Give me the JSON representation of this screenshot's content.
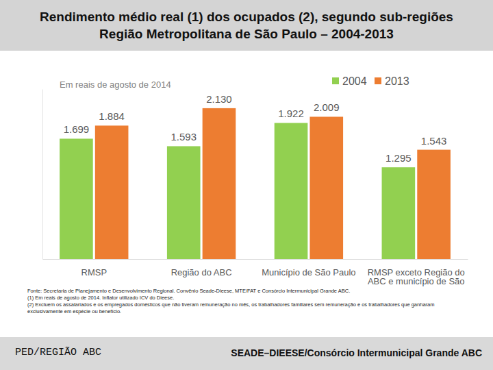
{
  "chart_data": {
    "type": "bar",
    "title": [
      "Rendimento médio real (1) dos ocupados (2), segundo sub-regiões",
      "Região Metropolitana de São Paulo – 2004-2013"
    ],
    "subtitle": "Em reais de agosto de 2014",
    "categories": [
      "RMSP",
      "Região do ABC",
      "Município de São Paulo",
      "RMSP exceto Região do ABC e município de São Paulo"
    ],
    "series": [
      {
        "name": "2004",
        "color": "#92d050",
        "values": [
          1699,
          1593,
          1922,
          1295
        ],
        "value_labels": [
          "1.699",
          "1.593",
          "1.922",
          "1.295"
        ]
      },
      {
        "name": "2013",
        "color": "#ed7d31",
        "values": [
          1884,
          2130,
          2009,
          1543
        ],
        "value_labels": [
          "1.884",
          "2.130",
          "2.009",
          "1.543"
        ]
      }
    ],
    "ylim": [
      0,
      2400
    ],
    "tick_labels": "x",
    "legend": "top-right",
    "data_labels": true,
    "notes": [
      "Fonte: Secretaria de Planejamento e Desenvolvimento Regional. Convênio Seade-Dieese, MTE/FAT e Consórcio Intermunicipal Grande ABC.",
      "(1) Em reais de agosto de 2014. Inflator utilizado ICV do Dieese.",
      "(2) Excluem os assalariados e os empregados domésticos que não tiveram remuneração no mês, os trabalhadores familiares sem remuneração e os trabalhadores que ganharam exclusivamente em espécie ou benefício."
    ],
    "footer": {
      "left": "PED/REGIÃO ABC",
      "right": "SEADE–DIEESE/Consórcio Intermunicipal Grande ABC"
    }
  }
}
